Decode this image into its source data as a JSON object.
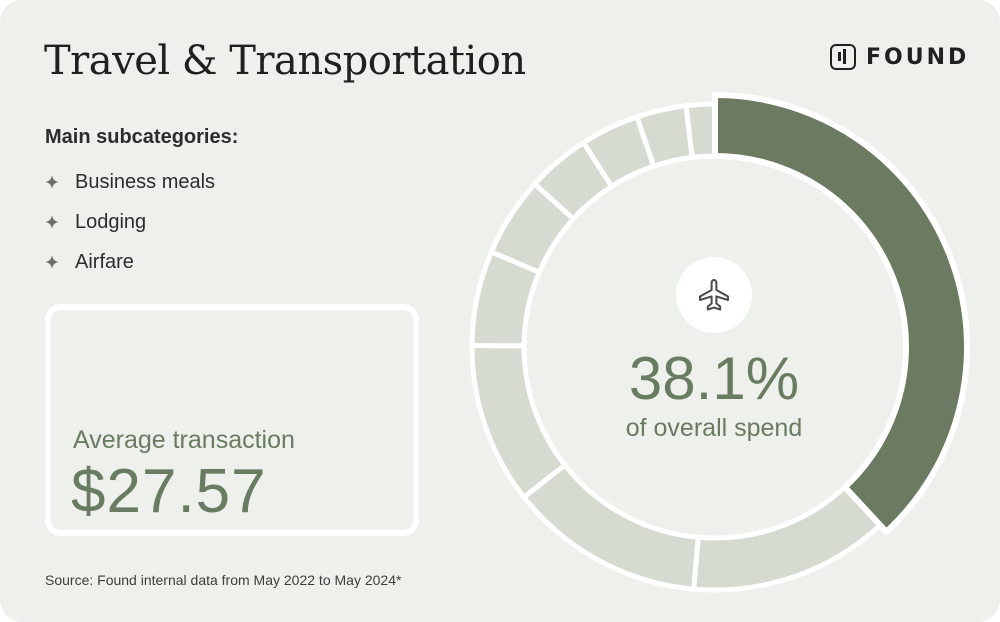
{
  "header": {
    "title": "Travel & Transportation",
    "brand": "FOUND"
  },
  "subcategories": {
    "heading": "Main subcategories:",
    "items": [
      "Business meals",
      "Lodging",
      "Airfare"
    ]
  },
  "average": {
    "label": "Average transaction",
    "value": "$27.57"
  },
  "highlight": {
    "value_text": "38.1%",
    "caption": "of overall spend",
    "icon": "airplane-icon"
  },
  "source": "Source: Found internal data from May 2022 to May 2024*",
  "colors": {
    "highlight": "#6b7a60",
    "rest": "#d6dbd2",
    "background": "#eef0ec",
    "text_accent": "#697b61"
  },
  "chart_data": {
    "type": "pie",
    "style": "donut",
    "slices": [
      {
        "value": 38.1,
        "highlighted": true
      },
      {
        "value": 13.3,
        "highlighted": false
      },
      {
        "value": 13.0,
        "highlighted": false
      },
      {
        "value": 10.7,
        "highlighted": false
      },
      {
        "value": 6.3,
        "highlighted": false
      },
      {
        "value": 5.3,
        "highlighted": false
      },
      {
        "value": 4.2,
        "highlighted": false
      },
      {
        "value": 3.9,
        "highlighted": false
      },
      {
        "value": 3.3,
        "highlighted": false
      },
      {
        "value": 1.9,
        "highlighted": false
      }
    ],
    "annotation": "38.1% of overall spend"
  }
}
